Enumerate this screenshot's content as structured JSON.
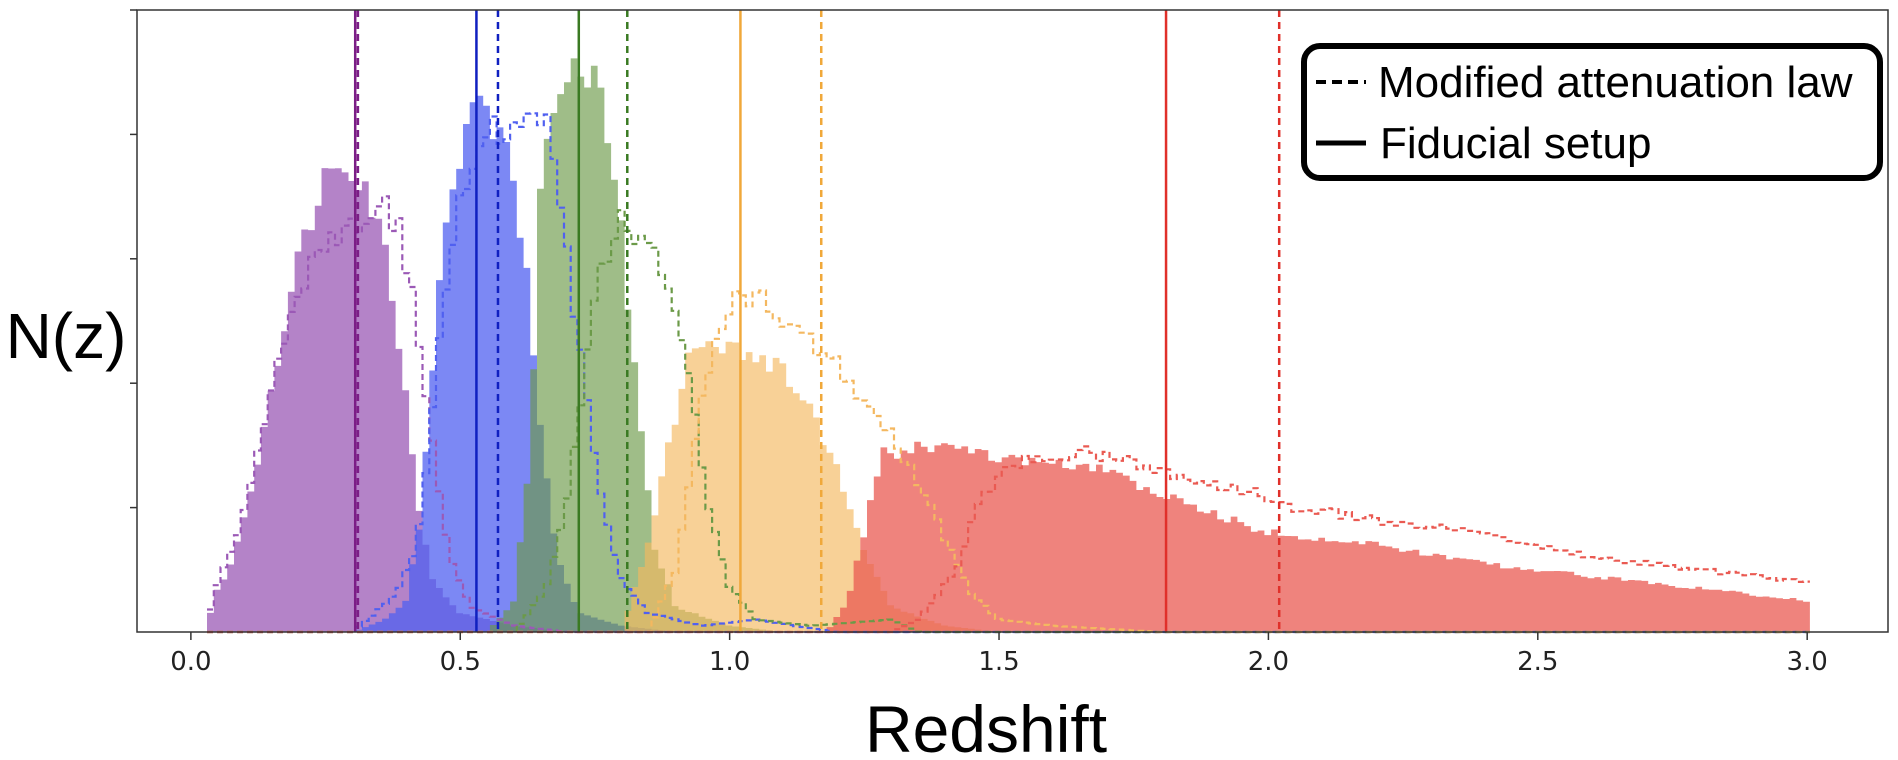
{
  "chart_data": {
    "type": "histogram",
    "xlabel": "Redshift",
    "ylabel": "N(z)",
    "xlim": [
      -0.1,
      3.15
    ],
    "ylim": [
      0,
      1.0
    ],
    "x_ticks": [
      "0.0",
      "0.5",
      "1.0",
      "1.5",
      "2.0",
      "2.5",
      "3.0"
    ],
    "y_tick_values": [
      0.2,
      0.4,
      0.6,
      0.8,
      1.0
    ],
    "y_tick_labels_shown": false,
    "grid": false,
    "legend": {
      "position": "top-right",
      "entries": [
        {
          "label": "Modified attenuation law",
          "linestyle": "dashed"
        },
        {
          "label": "Fiducial setup",
          "linestyle": "solid"
        }
      ]
    },
    "series": [
      {
        "color": "#9b59b6",
        "fill_opacity": 0.75,
        "fiducial_profile": [
          [
            0.03,
            0
          ],
          [
            0.04,
            0.05
          ],
          [
            0.08,
            0.12
          ],
          [
            0.12,
            0.26
          ],
          [
            0.16,
            0.44
          ],
          [
            0.2,
            0.6
          ],
          [
            0.24,
            0.72
          ],
          [
            0.28,
            0.77
          ],
          [
            0.32,
            0.73
          ],
          [
            0.36,
            0.62
          ],
          [
            0.39,
            0.45
          ],
          [
            0.42,
            0.22
          ],
          [
            0.45,
            0.08
          ],
          [
            0.5,
            0.03
          ],
          [
            0.6,
            0.01
          ],
          [
            0.7,
            0
          ]
        ],
        "modified_profile": [
          [
            0.03,
            0
          ],
          [
            0.04,
            0.06
          ],
          [
            0.08,
            0.14
          ],
          [
            0.12,
            0.27
          ],
          [
            0.16,
            0.42
          ],
          [
            0.2,
            0.54
          ],
          [
            0.24,
            0.62
          ],
          [
            0.28,
            0.65
          ],
          [
            0.32,
            0.67
          ],
          [
            0.36,
            0.69
          ],
          [
            0.39,
            0.64
          ],
          [
            0.42,
            0.5
          ],
          [
            0.45,
            0.3
          ],
          [
            0.48,
            0.12
          ],
          [
            0.52,
            0.04
          ],
          [
            0.6,
            0.01
          ],
          [
            0.7,
            0
          ]
        ],
        "fiducial_line": 0.305,
        "modified_line": 0.31
      },
      {
        "color": "#5060f0",
        "fill_opacity": 0.75,
        "fiducial_profile": [
          [
            0.3,
            0
          ],
          [
            0.36,
            0.02
          ],
          [
            0.4,
            0.05
          ],
          [
            0.43,
            0.2
          ],
          [
            0.46,
            0.58
          ],
          [
            0.5,
            0.78
          ],
          [
            0.53,
            0.84
          ],
          [
            0.56,
            0.82
          ],
          [
            0.59,
            0.76
          ],
          [
            0.62,
            0.6
          ],
          [
            0.65,
            0.32
          ],
          [
            0.68,
            0.12
          ],
          [
            0.72,
            0.03
          ],
          [
            0.8,
            0.01
          ],
          [
            0.9,
            0
          ]
        ],
        "modified_profile": [
          [
            0.3,
            0
          ],
          [
            0.38,
            0.06
          ],
          [
            0.42,
            0.14
          ],
          [
            0.45,
            0.36
          ],
          [
            0.48,
            0.62
          ],
          [
            0.52,
            0.74
          ],
          [
            0.56,
            0.8
          ],
          [
            0.6,
            0.83
          ],
          [
            0.64,
            0.85
          ],
          [
            0.67,
            0.78
          ],
          [
            0.7,
            0.6
          ],
          [
            0.73,
            0.4
          ],
          [
            0.76,
            0.22
          ],
          [
            0.8,
            0.08
          ],
          [
            0.85,
            0.03
          ],
          [
            0.95,
            0.01
          ],
          [
            1.05,
            0.02
          ],
          [
            1.12,
            0.01
          ],
          [
            1.2,
            0
          ]
        ],
        "fiducial_line": 0.53,
        "modified_line": 0.57
      },
      {
        "color": "#6b9a48",
        "fill_opacity": 0.65,
        "fiducial_profile": [
          [
            0.55,
            0
          ],
          [
            0.6,
            0.05
          ],
          [
            0.63,
            0.3
          ],
          [
            0.65,
            0.72
          ],
          [
            0.68,
            0.88
          ],
          [
            0.71,
            0.92
          ],
          [
            0.74,
            0.9
          ],
          [
            0.77,
            0.82
          ],
          [
            0.8,
            0.64
          ],
          [
            0.83,
            0.36
          ],
          [
            0.86,
            0.14
          ],
          [
            0.9,
            0.04
          ],
          [
            1.0,
            0.01
          ],
          [
            1.1,
            0
          ]
        ],
        "modified_profile": [
          [
            0.6,
            0
          ],
          [
            0.66,
            0.07
          ],
          [
            0.7,
            0.22
          ],
          [
            0.73,
            0.42
          ],
          [
            0.76,
            0.58
          ],
          [
            0.79,
            0.66
          ],
          [
            0.82,
            0.65
          ],
          [
            0.85,
            0.62
          ],
          [
            0.88,
            0.58
          ],
          [
            0.9,
            0.52
          ],
          [
            0.93,
            0.38
          ],
          [
            0.96,
            0.2
          ],
          [
            1.0,
            0.07
          ],
          [
            1.05,
            0.02
          ],
          [
            1.15,
            0.01
          ],
          [
            1.3,
            0.02
          ],
          [
            1.35,
            0
          ]
        ],
        "fiducial_line": 0.72,
        "modified_line": 0.81
      },
      {
        "color": "#f4b860",
        "fill_opacity": 0.65,
        "fiducial_profile": [
          [
            0.8,
            0
          ],
          [
            0.85,
            0.15
          ],
          [
            0.9,
            0.35
          ],
          [
            0.93,
            0.46
          ],
          [
            0.96,
            0.47
          ],
          [
            1.0,
            0.46
          ],
          [
            1.05,
            0.44
          ],
          [
            1.1,
            0.42
          ],
          [
            1.15,
            0.36
          ],
          [
            1.2,
            0.26
          ],
          [
            1.25,
            0.13
          ],
          [
            1.3,
            0.04
          ],
          [
            1.4,
            0.01
          ],
          [
            1.5,
            0
          ]
        ],
        "modified_profile": [
          [
            0.85,
            0
          ],
          [
            0.9,
            0.1
          ],
          [
            0.94,
            0.33
          ],
          [
            0.98,
            0.5
          ],
          [
            1.02,
            0.54
          ],
          [
            1.06,
            0.53
          ],
          [
            1.1,
            0.5
          ],
          [
            1.15,
            0.47
          ],
          [
            1.2,
            0.43
          ],
          [
            1.25,
            0.37
          ],
          [
            1.3,
            0.32
          ],
          [
            1.35,
            0.24
          ],
          [
            1.4,
            0.15
          ],
          [
            1.45,
            0.06
          ],
          [
            1.5,
            0.02
          ],
          [
            1.6,
            0.01
          ],
          [
            1.8,
            0
          ]
        ],
        "fiducial_line": 1.02,
        "modified_line": 1.17
      },
      {
        "color": "#ea5a52",
        "fill_opacity": 0.75,
        "fiducial_profile": [
          [
            1.18,
            0
          ],
          [
            1.22,
            0.05
          ],
          [
            1.26,
            0.2
          ],
          [
            1.29,
            0.3
          ],
          [
            1.32,
            0.28
          ],
          [
            1.36,
            0.3
          ],
          [
            1.4,
            0.3
          ],
          [
            1.5,
            0.28
          ],
          [
            1.6,
            0.27
          ],
          [
            1.7,
            0.26
          ],
          [
            1.8,
            0.22
          ],
          [
            1.9,
            0.19
          ],
          [
            2.0,
            0.16
          ],
          [
            2.2,
            0.14
          ],
          [
            2.4,
            0.11
          ],
          [
            2.6,
            0.09
          ],
          [
            2.8,
            0.07
          ],
          [
            3.0,
            0.05
          ]
        ],
        "modified_profile": [
          [
            1.3,
            0
          ],
          [
            1.35,
            0.02
          ],
          [
            1.42,
            0.1
          ],
          [
            1.46,
            0.2
          ],
          [
            1.5,
            0.25
          ],
          [
            1.55,
            0.28
          ],
          [
            1.65,
            0.29
          ],
          [
            1.75,
            0.27
          ],
          [
            1.85,
            0.25
          ],
          [
            1.95,
            0.23
          ],
          [
            2.05,
            0.2
          ],
          [
            2.2,
            0.18
          ],
          [
            2.4,
            0.16
          ],
          [
            2.6,
            0.12
          ],
          [
            2.8,
            0.1
          ],
          [
            3.0,
            0.08
          ]
        ],
        "fiducial_line": 1.81,
        "modified_line": 2.02
      }
    ]
  }
}
